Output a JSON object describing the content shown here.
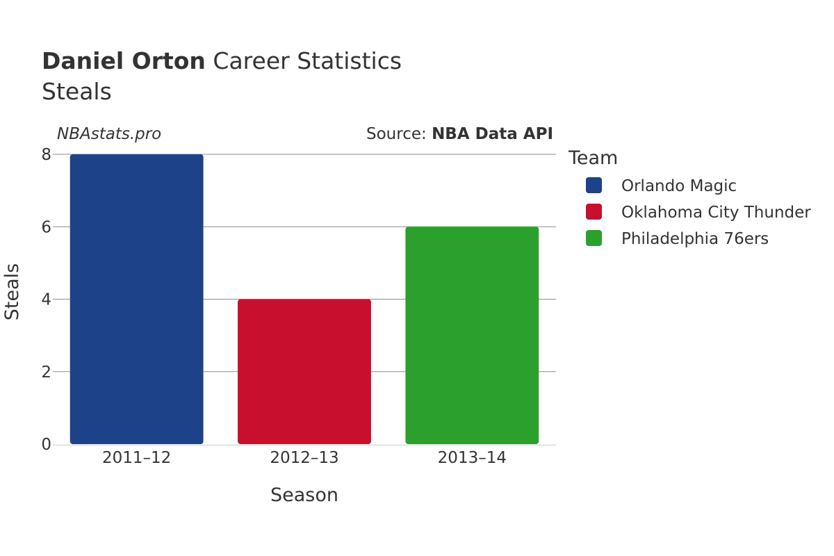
{
  "header": {
    "player": "Daniel Orton",
    "title_rest": "Career Statistics",
    "subtitle": "Steals"
  },
  "watermark": "NBAstats.pro",
  "source": {
    "prefix": "Source: ",
    "name": "NBA Data API"
  },
  "legend": {
    "title": "Team"
  },
  "chart_data": {
    "type": "bar",
    "categories": [
      "2011–12",
      "2012–13",
      "2013–14"
    ],
    "series": [
      {
        "name": "Orlando Magic",
        "color": "#1d428a",
        "values": [
          8,
          null,
          null
        ]
      },
      {
        "name": "Oklahoma City Thunder",
        "color": "#c8102e",
        "values": [
          null,
          4,
          null
        ]
      },
      {
        "name": "Philadelphia 76ers",
        "color": "#2ca02c",
        "values": [
          null,
          null,
          6
        ]
      }
    ],
    "xlabel": "Season",
    "ylabel": "Steals",
    "ylim": [
      0,
      8
    ],
    "yticks": [
      0,
      2,
      4,
      6,
      8
    ],
    "grid": true,
    "legend_position": "right"
  }
}
